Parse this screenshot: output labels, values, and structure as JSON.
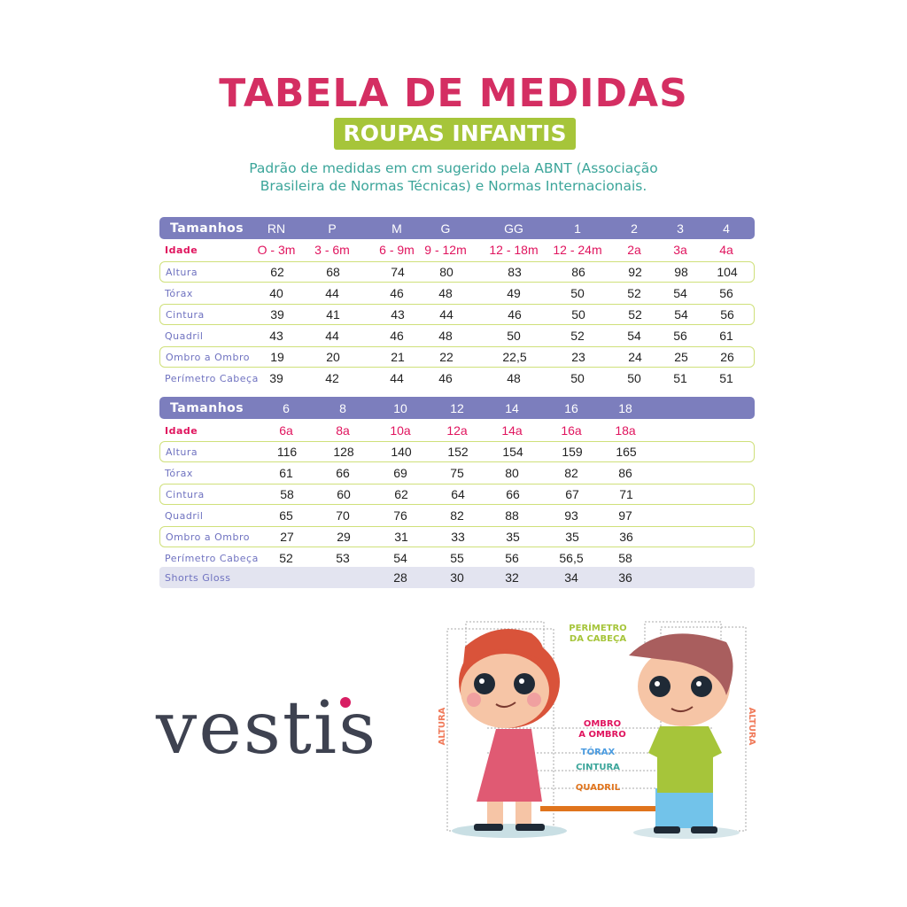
{
  "header": {
    "title": "TABELA DE MEDIDAS",
    "subtitle": "ROUPAS INFANTIS",
    "description_line1": "Padrão de medidas em cm sugerido pela ABNT (Associação",
    "description_line2": "Brasileira de Normas Técnicas) e Normas Internacionais."
  },
  "table1": {
    "header_label": "Tamanhos",
    "sizes": [
      "RN",
      "P",
      "M",
      "G",
      "GG",
      "1",
      "2",
      "3",
      "4"
    ],
    "rows": [
      {
        "label": "Idade",
        "values": [
          "O - 3m",
          "3 - 6m",
          "6 - 9m",
          "9 - 12m",
          "12 - 18m",
          "12 - 24m",
          "2a",
          "3a",
          "4a"
        ]
      },
      {
        "label": "Altura",
        "values": [
          "62",
          "68",
          "74",
          "80",
          "83",
          "86",
          "92",
          "98",
          "104"
        ]
      },
      {
        "label": "Tórax",
        "values": [
          "40",
          "44",
          "46",
          "48",
          "49",
          "50",
          "52",
          "54",
          "56"
        ]
      },
      {
        "label": "Cintura",
        "values": [
          "39",
          "41",
          "43",
          "44",
          "46",
          "50",
          "52",
          "54",
          "56"
        ]
      },
      {
        "label": "Quadril",
        "values": [
          "43",
          "44",
          "46",
          "48",
          "50",
          "52",
          "54",
          "56",
          "61"
        ]
      },
      {
        "label": "Ombro a Ombro",
        "values": [
          "19",
          "20",
          "21",
          "22",
          "22,5",
          "23",
          "24",
          "25",
          "26"
        ]
      },
      {
        "label": "Perímetro Cabeça",
        "values": [
          "39",
          "42",
          "44",
          "46",
          "48",
          "50",
          "50",
          "51",
          "51"
        ]
      }
    ]
  },
  "table2": {
    "header_label": "Tamanhos",
    "sizes": [
      "6",
      "8",
      "10",
      "12",
      "14",
      "16",
      "18"
    ],
    "rows": [
      {
        "label": "Idade",
        "values": [
          "6a",
          "8a",
          "10a",
          "12a",
          "14a",
          "16a",
          "18a"
        ]
      },
      {
        "label": "Altura",
        "values": [
          "116",
          "128",
          "140",
          "152",
          "154",
          "159",
          "165"
        ]
      },
      {
        "label": "Tórax",
        "values": [
          "61",
          "66",
          "69",
          "75",
          "80",
          "82",
          "86"
        ]
      },
      {
        "label": "Cintura",
        "values": [
          "58",
          "60",
          "62",
          "64",
          "66",
          "67",
          "71"
        ]
      },
      {
        "label": "Quadril",
        "values": [
          "65",
          "70",
          "76",
          "82",
          "88",
          "93",
          "97"
        ]
      },
      {
        "label": "Ombro a Ombro",
        "values": [
          "27",
          "29",
          "31",
          "33",
          "35",
          "35",
          "36"
        ]
      },
      {
        "label": "Perímetro Cabeça",
        "values": [
          "52",
          "53",
          "54",
          "55",
          "56",
          "56,5",
          "58"
        ]
      },
      {
        "label": "Shorts Gloss",
        "values": [
          "",
          "",
          "28",
          "30",
          "32",
          "34",
          "36"
        ]
      }
    ]
  },
  "brand": {
    "logo": "vestis"
  },
  "illustration": {
    "head": "PERÍMETRO",
    "head2": "DA CABEÇA",
    "shoulder": "OMBRO",
    "shoulder2": "A OMBRO",
    "chest": "TÓRAX",
    "waist": "CINTURA",
    "hip": "QUADRIL",
    "height_left": "ALTURA",
    "height_right": "ALTURA"
  },
  "colors": {
    "title": "#d42e62",
    "subtitle_bg": "#a6c53a",
    "description": "#3ba59a",
    "table_header": "#7c7ebd",
    "age": "#e0145e",
    "row_border": "#cfe07a"
  }
}
